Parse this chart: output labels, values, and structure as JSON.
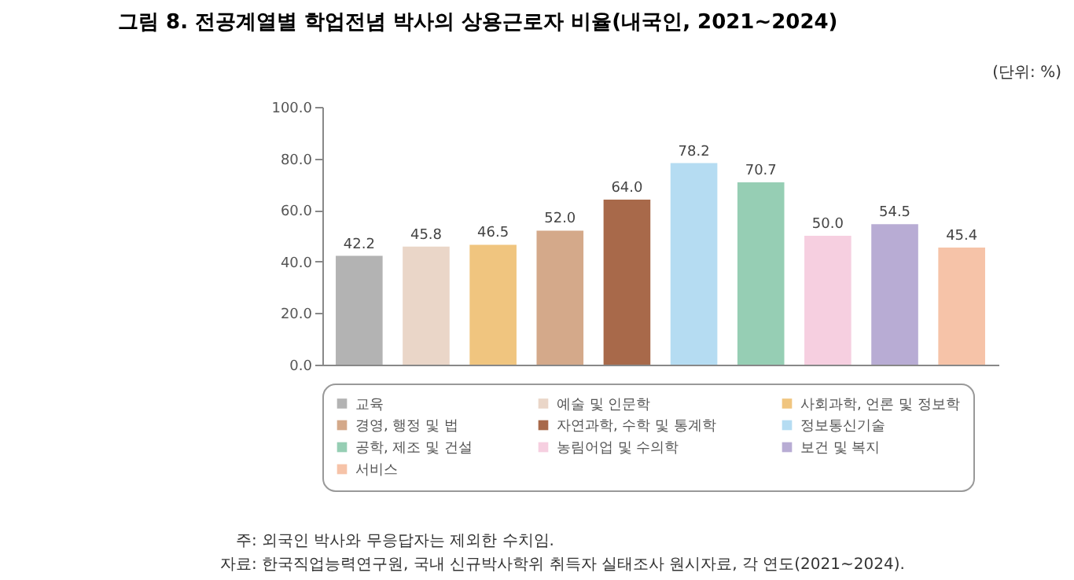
{
  "chart_data": {
    "type": "bar",
    "title": "그림 8. 전공계열별 학업전념 박사의 상용근로자 비율(내국인, 2021~2024)",
    "categories": [
      null,
      null,
      null,
      null,
      null,
      null,
      null,
      null,
      null,
      null
    ],
    "series": [
      {
        "name": "교육",
        "color": "#b3b3b3",
        "values": [
          42.2,
          null,
          null,
          null,
          null,
          null,
          null,
          null,
          null,
          null
        ],
        "value_labels": [
          "42.2",
          null,
          null,
          null,
          null,
          null,
          null,
          null,
          null,
          null
        ]
      },
      {
        "name": "예술 및 인문학",
        "color": "#ead6c8",
        "values": [
          null,
          45.8,
          null,
          null,
          null,
          null,
          null,
          null,
          null,
          null
        ],
        "value_labels": [
          null,
          "45.8",
          null,
          null,
          null,
          null,
          null,
          null,
          null,
          null
        ]
      },
      {
        "name": "사회과학, 언론 및 정보학",
        "color": "#f0c57f",
        "values": [
          null,
          null,
          46.5,
          null,
          null,
          null,
          null,
          null,
          null,
          null
        ],
        "value_labels": [
          null,
          null,
          "46.5",
          null,
          null,
          null,
          null,
          null,
          null,
          null
        ]
      },
      {
        "name": "경영, 행정 및 법",
        "color": "#d4a98a",
        "values": [
          null,
          null,
          null,
          52.0,
          null,
          null,
          null,
          null,
          null,
          null
        ],
        "value_labels": [
          null,
          null,
          null,
          "52.0",
          null,
          null,
          null,
          null,
          null,
          null
        ]
      },
      {
        "name": "자연과학, 수학 및 통계학",
        "color": "#a8694a",
        "values": [
          null,
          null,
          null,
          null,
          64.0,
          null,
          null,
          null,
          null,
          null
        ],
        "value_labels": [
          null,
          null,
          null,
          null,
          "64.0",
          null,
          null,
          null,
          null,
          null
        ]
      },
      {
        "name": "정보통신기술",
        "color": "#b5dcf2",
        "values": [
          null,
          null,
          null,
          null,
          null,
          78.2,
          null,
          null,
          null,
          null
        ],
        "value_labels": [
          null,
          null,
          null,
          null,
          null,
          "78.2",
          null,
          null,
          null,
          null
        ]
      },
      {
        "name": "공학, 제조 및 건설",
        "color": "#96ceb4",
        "values": [
          null,
          null,
          null,
          null,
          null,
          null,
          70.7,
          null,
          null,
          null
        ],
        "value_labels": [
          null,
          null,
          null,
          null,
          null,
          null,
          "70.7",
          null,
          null,
          null
        ]
      },
      {
        "name": "농림어업 및 수의학",
        "color": "#f6cfe0",
        "values": [
          null,
          null,
          null,
          null,
          null,
          null,
          null,
          50.0,
          null,
          null
        ],
        "value_labels": [
          null,
          null,
          null,
          null,
          null,
          null,
          null,
          "50.0",
          null,
          null
        ]
      },
      {
        "name": "보건 및 복지",
        "color": "#b8acd4",
        "values": [
          null,
          null,
          null,
          null,
          null,
          null,
          null,
          null,
          54.5,
          null
        ],
        "value_labels": [
          null,
          null,
          null,
          null,
          null,
          null,
          null,
          null,
          "54.5",
          null
        ]
      },
      {
        "name": "서비스",
        "color": "#f6c3a8",
        "values": [
          null,
          null,
          null,
          null,
          null,
          null,
          null,
          null,
          null,
          45.4
        ],
        "value_labels": [
          null,
          null,
          null,
          null,
          null,
          null,
          null,
          null,
          null,
          "45.4"
        ]
      }
    ],
    "ylim": [
      0,
      100
    ],
    "yticks": [
      {
        "value": 0,
        "label": "0.0"
      },
      {
        "value": 20,
        "label": "20.0"
      },
      {
        "value": 40,
        "label": "40.0"
      },
      {
        "value": 60,
        "label": "60.0"
      },
      {
        "value": 80,
        "label": "80.0"
      },
      {
        "value": 100,
        "label": "100.0"
      }
    ],
    "grid": false,
    "legend": "bottom",
    "tick_labels": "y",
    "annotations": [
      "(단위: %)",
      "주: 외국인 박사와 무응답자는 제외한 수치임.",
      "자료: 한국직업능력연구원, 국내 신규박사학위 취득자 실태조사 원시자료, 각 연도(2021~2024)."
    ]
  }
}
